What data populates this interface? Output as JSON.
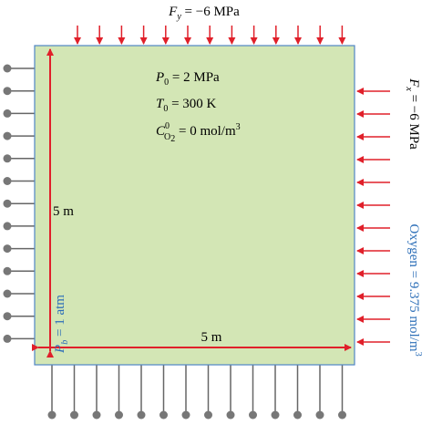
{
  "top_load": {
    "symbol": "F",
    "sub": "y",
    "rest": " = −6 MPa"
  },
  "right_load": {
    "symbol": "F",
    "sub": "x",
    "rest": " = −6 MPa"
  },
  "initial": [
    {
      "symbol": "P",
      "sub": "0",
      "rest": " = 2 MPa"
    },
    {
      "symbol": "T",
      "sub": "0",
      "rest": " = 300 K"
    },
    {
      "symbol": "C",
      "sup": "0",
      "sub": "O",
      "sub2": "2",
      "rest": " = 0 mol/m",
      "unit_sup": "3"
    }
  ],
  "height_label": "5 m",
  "width_label": "5 m",
  "left_boundary": {
    "symbol": "P",
    "sub": "b",
    "rest": " = 1 atm"
  },
  "right_boundary": {
    "text": "Oxygen = 9.375 mol/m",
    "unit_sup": "3"
  }
}
